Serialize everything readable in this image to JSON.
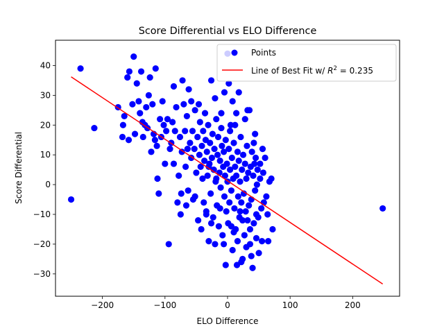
{
  "chart_data": {
    "type": "scatter",
    "title": "Score Differential vs ELO Difference",
    "xlabel": "ELO Difference",
    "ylabel": "Score Differential",
    "xlim": [
      -275,
      275
    ],
    "ylim": [
      -37.5,
      48.5
    ],
    "xticks": [
      -200,
      -100,
      0,
      100,
      200
    ],
    "yticks": [
      -30,
      -20,
      -10,
      0,
      10,
      20,
      30,
      40
    ],
    "grid": false,
    "legend_position": "top-right",
    "series": [
      {
        "name": "Points",
        "color": "#0000ff",
        "marker": "circle",
        "points": [
          [
            -250,
            -5
          ],
          [
            248,
            -8
          ],
          [
            -235,
            39
          ],
          [
            -213,
            19
          ],
          [
            -175,
            26
          ],
          [
            -168,
            16
          ],
          [
            -167,
            20
          ],
          [
            -165,
            23
          ],
          [
            -160,
            36
          ],
          [
            -158,
            15
          ],
          [
            -157,
            38
          ],
          [
            -152,
            27
          ],
          [
            -150,
            43
          ],
          [
            -148,
            17
          ],
          [
            -145,
            34
          ],
          [
            -142,
            28
          ],
          [
            -140,
            24
          ],
          [
            -138,
            38
          ],
          [
            -136,
            21
          ],
          [
            -135,
            16
          ],
          [
            -132,
            20
          ],
          [
            -130,
            26
          ],
          [
            -128,
            19
          ],
          [
            -126,
            30
          ],
          [
            -124,
            36
          ],
          [
            -122,
            11
          ],
          [
            -120,
            27
          ],
          [
            -118,
            17
          ],
          [
            -116,
            15
          ],
          [
            -115,
            39
          ],
          [
            -113,
            13
          ],
          [
            -112,
            2
          ],
          [
            -110,
            -3
          ],
          [
            -108,
            22
          ],
          [
            -106,
            16
          ],
          [
            -104,
            28
          ],
          [
            -102,
            20
          ],
          [
            -100,
            7
          ],
          [
            -98,
            18
          ],
          [
            -96,
            22
          ],
          [
            -94,
            -20
          ],
          [
            -92,
            12
          ],
          [
            -90,
            14
          ],
          [
            -88,
            21
          ],
          [
            -86,
            33
          ],
          [
            -84,
            18
          ],
          [
            -82,
            26
          ],
          [
            -80,
            -6
          ],
          [
            -78,
            3
          ],
          [
            -76,
            16
          ],
          [
            -75,
            -10
          ],
          [
            -73,
            11
          ],
          [
            -72,
            35
          ],
          [
            -70,
            27
          ],
          [
            -68,
            18
          ],
          [
            -67,
            6
          ],
          [
            -65,
            23
          ],
          [
            -63,
            -2
          ],
          [
            -62,
            32
          ],
          [
            -60,
            14
          ],
          [
            -58,
            9
          ],
          [
            -56,
            18
          ],
          [
            -55,
            -5
          ],
          [
            -53,
            12
          ],
          [
            -52,
            25
          ],
          [
            -50,
            4
          ],
          [
            -48,
            16
          ],
          [
            -47,
            -12
          ],
          [
            -45,
            10
          ],
          [
            -44,
            21
          ],
          [
            -43,
            6
          ],
          [
            -42,
            -15
          ],
          [
            -41,
            13
          ],
          [
            -40,
            2
          ],
          [
            -39,
            18
          ],
          [
            -38,
            -6
          ],
          [
            -37,
            8
          ],
          [
            -36,
            24
          ],
          [
            -35,
            15
          ],
          [
            -34,
            -9
          ],
          [
            -33,
            11
          ],
          [
            -32,
            3
          ],
          [
            -31,
            20
          ],
          [
            -30,
            -19
          ],
          [
            -29,
            7
          ],
          [
            -28,
            14
          ],
          [
            -27,
            -3
          ],
          [
            -26,
            35
          ],
          [
            -25,
            9
          ],
          [
            -24,
            17
          ],
          [
            -23,
            -11
          ],
          [
            -22,
            5
          ],
          [
            -21,
            12
          ],
          [
            -20,
            -20
          ],
          [
            -19,
            1
          ],
          [
            -18,
            22
          ],
          [
            -17,
            -7
          ],
          [
            -16,
            10
          ],
          [
            -15,
            16
          ],
          [
            -14,
            -14
          ],
          [
            -13,
            4
          ],
          [
            -12,
            8
          ],
          [
            -11,
            -1
          ],
          [
            -10,
            19
          ],
          [
            -9,
            13
          ],
          [
            -8,
            -17
          ],
          [
            -7,
            6
          ],
          [
            -6,
            11
          ],
          [
            -5,
            -4
          ],
          [
            -4,
            3
          ],
          [
            -3,
            15
          ],
          [
            -2,
            -9
          ],
          [
            -1,
            7
          ],
          [
            0,
            44
          ],
          [
            0,
            1
          ],
          [
            1,
            -13
          ],
          [
            2,
            12
          ],
          [
            3,
            -6
          ],
          [
            4,
            5
          ],
          [
            5,
            20
          ],
          [
            6,
            -2
          ],
          [
            7,
            9
          ],
          [
            8,
            -22
          ],
          [
            9,
            2
          ],
          [
            10,
            14
          ],
          [
            11,
            -8
          ],
          [
            12,
            6
          ],
          [
            13,
            -15
          ],
          [
            14,
            3
          ],
          [
            15,
            -27
          ],
          [
            16,
            11
          ],
          [
            17,
            -4
          ],
          [
            18,
            8
          ],
          [
            19,
            -11
          ],
          [
            20,
            1
          ],
          [
            21,
            16
          ],
          [
            22,
            -6
          ],
          [
            23,
            5
          ],
          [
            24,
            -25
          ],
          [
            25,
            10
          ],
          [
            26,
            -3
          ],
          [
            27,
            -17
          ],
          [
            28,
            7
          ],
          [
            29,
            -9
          ],
          [
            30,
            2
          ],
          [
            31,
            13
          ],
          [
            32,
            -12
          ],
          [
            33,
            4
          ],
          [
            34,
            -7
          ],
          [
            35,
            25
          ],
          [
            36,
            -20
          ],
          [
            37,
            6
          ],
          [
            38,
            -5
          ],
          [
            39,
            11
          ],
          [
            40,
            -28
          ],
          [
            41,
            3
          ],
          [
            42,
            -13
          ],
          [
            43,
            7
          ],
          [
            44,
            -2
          ],
          [
            45,
            9
          ],
          [
            46,
            -18
          ],
          [
            47,
            0
          ],
          [
            48,
            5
          ],
          [
            49,
            -11
          ],
          [
            50,
            -23
          ],
          [
            52,
            2
          ],
          [
            54,
            -8
          ],
          [
            55,
            -19
          ],
          [
            57,
            4
          ],
          [
            58,
            -6
          ],
          [
            60,
            9
          ],
          [
            62,
            -4
          ],
          [
            64,
            -10
          ],
          [
            65,
            -19
          ],
          [
            67,
            1
          ],
          [
            70,
            2
          ],
          [
            72,
            -15
          ],
          [
            -5,
            31
          ],
          [
            -3,
            -27
          ],
          [
            2,
            34
          ],
          [
            8,
            28
          ],
          [
            12,
            20
          ],
          [
            18,
            31
          ],
          [
            22,
            -26
          ],
          [
            28,
            22
          ],
          [
            32,
            25
          ],
          [
            38,
            -24
          ],
          [
            44,
            17
          ],
          [
            -58,
            28
          ],
          [
            -64,
            12
          ],
          [
            -46,
            27
          ],
          [
            -20,
            29
          ],
          [
            -10,
            24
          ],
          [
            4,
            18
          ],
          [
            14,
            24
          ],
          [
            -74,
            -3
          ],
          [
            -66,
            -7
          ],
          [
            -52,
            -4
          ],
          [
            -34,
            -10
          ],
          [
            -26,
            -13
          ],
          [
            -12,
            -8
          ],
          [
            6,
            -14
          ],
          [
            16,
            -19
          ],
          [
            24,
            -12
          ],
          [
            36,
            -15
          ],
          [
            52,
            7
          ],
          [
            46,
            -10
          ],
          [
            -86,
            7
          ],
          [
            -30,
            6
          ],
          [
            -18,
            2
          ],
          [
            -6,
            -20
          ],
          [
            10,
            -16
          ],
          [
            20,
            -9
          ],
          [
            30,
            -21
          ],
          [
            42,
            14
          ],
          [
            56,
            12
          ]
        ]
      },
      {
        "name": "Line of Best Fit w/ R^2 = 0.235",
        "color": "#ff0000",
        "type": "line",
        "points": [
          [
            -250,
            36.2
          ],
          [
            248,
            -33.4
          ]
        ]
      }
    ],
    "legend": {
      "points_label": "Points",
      "line_label_prefix": "Line of Best Fit w/ ",
      "line_label_r": "R",
      "line_label_exp": "2",
      "line_label_value": " = 0.235"
    }
  }
}
